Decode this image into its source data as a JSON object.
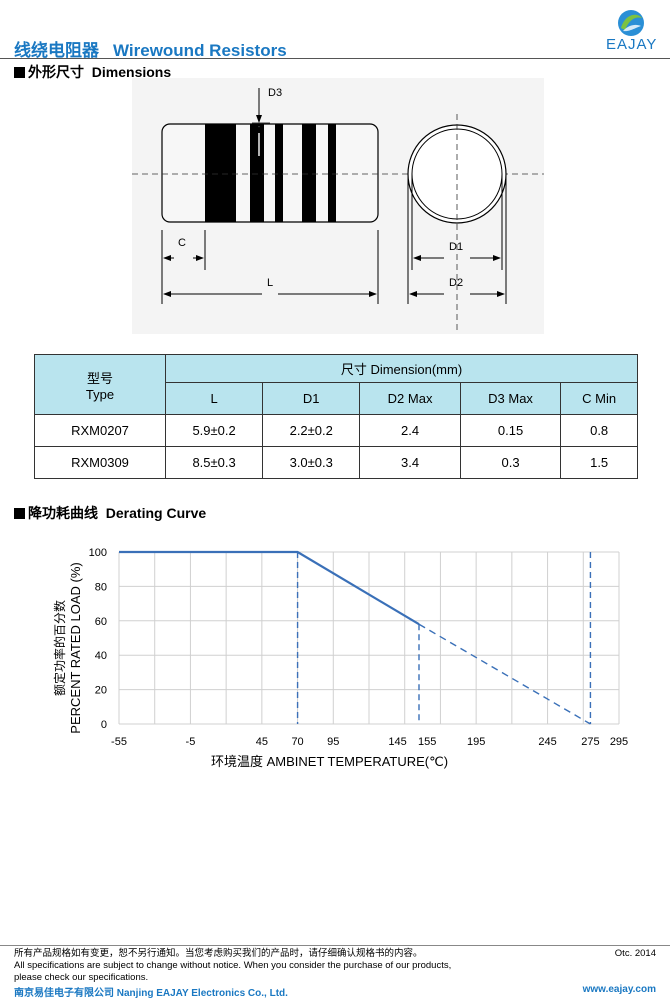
{
  "header": {
    "title_cn": "线绕电阻器",
    "title_en": "Wirewound Resistors",
    "logo_text": "EAJAY",
    "accent_color": "#1a78c2"
  },
  "dimensions": {
    "section_cn": "外形尺寸",
    "section_en": "Dimensions",
    "labels": {
      "d3": "D3",
      "c": "C",
      "l": "L",
      "d1": "D1",
      "d2": "D2"
    }
  },
  "table": {
    "type_cn": "型号",
    "type_en": "Type",
    "dimension_header": "尺寸 Dimension(mm)",
    "columns": [
      "L",
      "D1",
      "D2 Max",
      "D3 Max",
      "C Min"
    ],
    "rows": [
      {
        "type": "RXM0207",
        "values": [
          "5.9±0.2",
          "2.2±0.2",
          "2.4",
          "0.15",
          "0.8"
        ]
      },
      {
        "type": "RXM0309",
        "values": [
          "8.5±0.3",
          "3.0±0.3",
          "3.4",
          "0.3",
          "1.5"
        ]
      }
    ],
    "header_color": "#b9e4ee"
  },
  "derating": {
    "section_cn": "降功耗曲线",
    "section_en": "Derating Curve"
  },
  "chart_data": {
    "type": "line",
    "ylabel_cn": "额定功率的百分数",
    "ylabel_en": "PERCENT RATED LOAD",
    "ylabel_unit": "(%)",
    "xlabel_cn": "环境温度",
    "xlabel_en": "AMBINET TEMPERATURE(℃)",
    "xlim": [
      -55,
      295
    ],
    "ylim": [
      0,
      100
    ],
    "x_ticks": [
      "-55",
      "-5",
      "45",
      "70",
      "95",
      "145",
      "155",
      "195",
      "245",
      "275",
      "295"
    ],
    "x_tick_values": [
      -55,
      -5,
      45,
      70,
      95,
      145,
      155,
      195,
      245,
      275,
      295
    ],
    "y_ticks": [
      "0",
      "20",
      "40",
      "60",
      "80",
      "100"
    ],
    "y_tick_values": [
      0,
      20,
      40,
      60,
      80,
      100
    ],
    "grid": true,
    "series": [
      {
        "style": "solid",
        "x": [
          -55,
          70,
          155
        ],
        "y": [
          100,
          100,
          58
        ]
      },
      {
        "style": "dashed",
        "x": [
          155,
          275
        ],
        "y": [
          58,
          0
        ]
      }
    ],
    "vlines": [
      {
        "x": 70,
        "y_top": 100
      },
      {
        "x": 155,
        "y_top": 58
      },
      {
        "x": 275,
        "y_top": 100
      }
    ],
    "line_color": "#3a70b8"
  },
  "footer": {
    "note_cn": "所有产品规格如有变更，恕不另行通知。当您考虑购买我们的产品时，请仔细确认规格书的内容。",
    "note_en1": "All specifications are subject to change without notice. When you consider the purchase of our products,",
    "note_en2": "please check our specifications.",
    "date": "Otc. 2014",
    "company": "南京易佳电子有限公司 Nanjing EAJAY Electronics Co., Ltd.",
    "website": "www.eajay.com"
  }
}
